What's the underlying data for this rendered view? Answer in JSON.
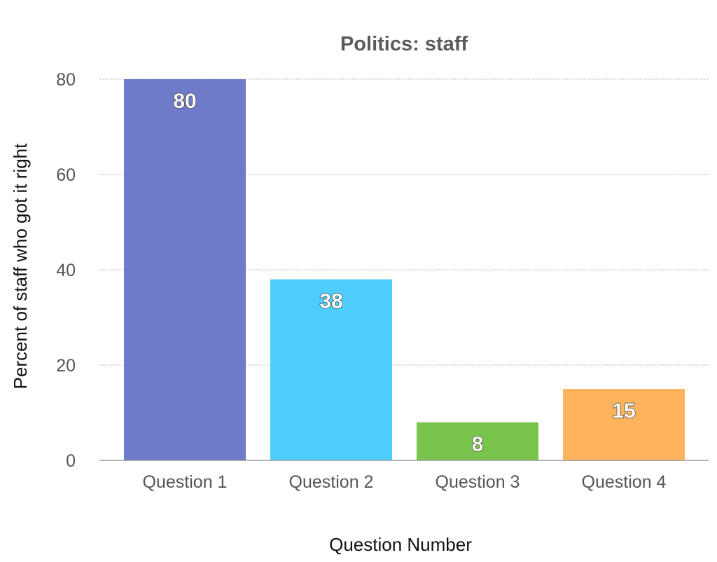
{
  "chart_data": {
    "type": "bar",
    "title": "Politics: staff",
    "xlabel": "Question Number",
    "ylabel": "Percent of staff who got it right",
    "categories": [
      "Question 1",
      "Question 2",
      "Question 3",
      "Question 4"
    ],
    "values": [
      80,
      38,
      8,
      15
    ],
    "data_labels": [
      "80",
      "38",
      "8",
      "15"
    ],
    "colors": [
      "#6e7bc8",
      "#4dcdfb",
      "#78c44c",
      "#fdb45c"
    ],
    "ylim": [
      0,
      80
    ],
    "yticks": [
      0,
      20,
      40,
      60,
      80
    ],
    "ytick_labels": [
      "0",
      "20",
      "40",
      "60",
      "80"
    ],
    "grid": true,
    "legend": "none"
  }
}
